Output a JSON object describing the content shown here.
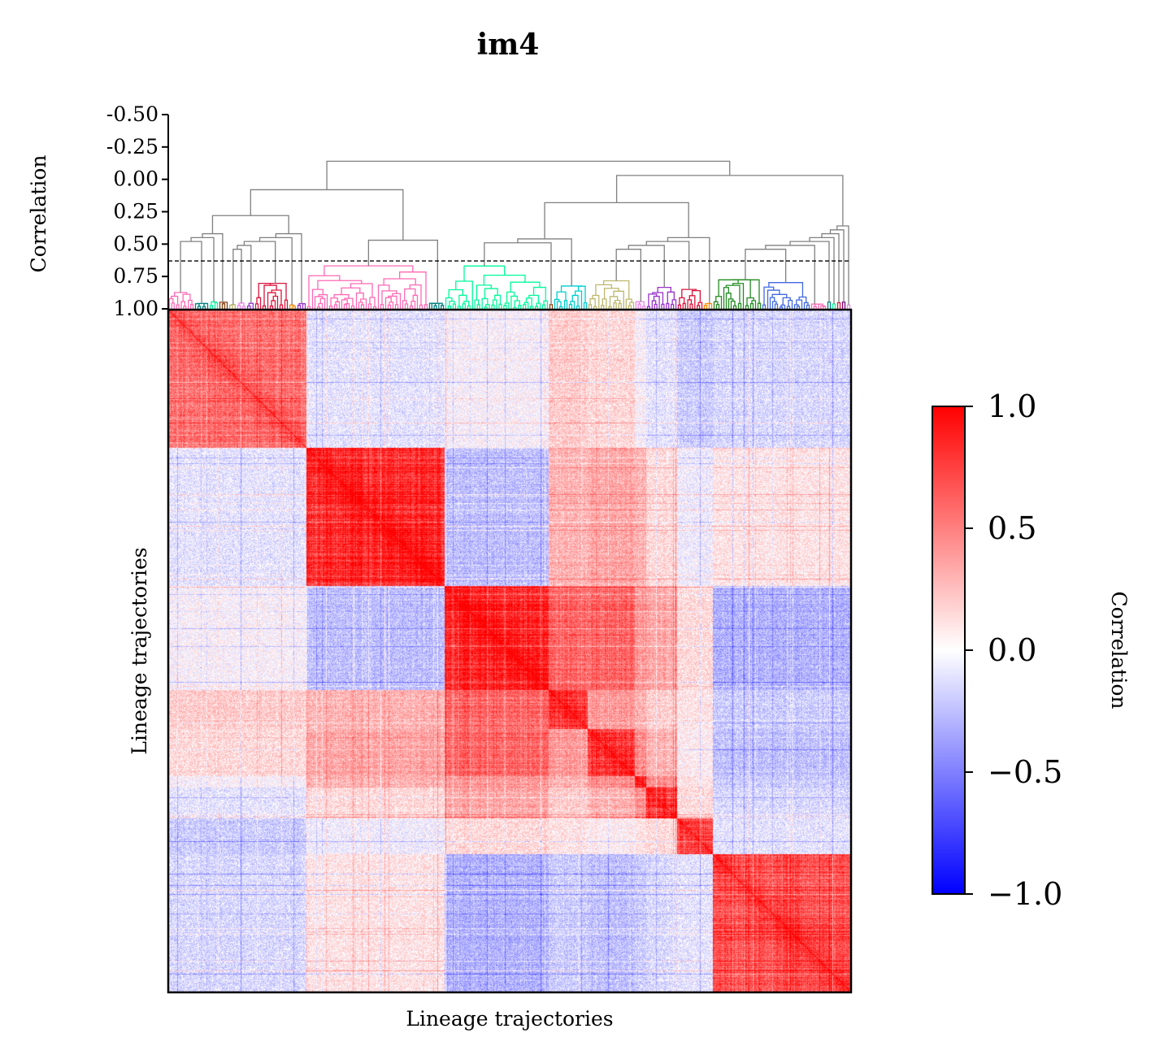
{
  "chart_data": [
    {
      "type": "dendrogram",
      "title": "im4",
      "ylabel": "Correlation",
      "y_tick_labels": [
        "-0.50",
        "-0.25",
        "0.00",
        "0.25",
        "0.50",
        "0.75",
        "1.00"
      ],
      "y_ticks": [
        -0.5,
        -0.25,
        0.0,
        0.25,
        0.5,
        0.75,
        1.0
      ],
      "ylim": [
        -0.5,
        1.0
      ],
      "y_inverted": true,
      "cutoff_line": 0.63,
      "link_color": "#808080",
      "leaf_count": 840,
      "clusters": [
        {
          "start": 0,
          "end": 32,
          "color": "#ff69b4"
        },
        {
          "start": 32,
          "end": 50,
          "color": "#008080"
        },
        {
          "start": 50,
          "end": 62,
          "color": "#00fa9a"
        },
        {
          "start": 62,
          "end": 74,
          "color": "#8b4513"
        },
        {
          "start": 74,
          "end": 84,
          "color": "#bdb76b"
        },
        {
          "start": 84,
          "end": 96,
          "color": "#ee82ee"
        },
        {
          "start": 96,
          "end": 106,
          "color": "#9932cc"
        },
        {
          "start": 106,
          "end": 148,
          "color": "#dc143c"
        },
        {
          "start": 148,
          "end": 158,
          "color": "#ff8c00"
        },
        {
          "start": 158,
          "end": 170,
          "color": "#9932cc"
        },
        {
          "start": 170,
          "end": 320,
          "color": "#ff69b4"
        },
        {
          "start": 320,
          "end": 340,
          "color": "#008080"
        },
        {
          "start": 340,
          "end": 468,
          "color": "#00fa9a"
        },
        {
          "start": 468,
          "end": 474,
          "color": "#8b4513"
        },
        {
          "start": 474,
          "end": 516,
          "color": "#00ced1"
        },
        {
          "start": 516,
          "end": 574,
          "color": "#bdb76b"
        },
        {
          "start": 574,
          "end": 588,
          "color": "#ee82ee"
        },
        {
          "start": 588,
          "end": 626,
          "color": "#9932cc"
        },
        {
          "start": 626,
          "end": 658,
          "color": "#dc143c"
        },
        {
          "start": 658,
          "end": 670,
          "color": "#ff8c00"
        },
        {
          "start": 670,
          "end": 730,
          "color": "#228b22"
        },
        {
          "start": 730,
          "end": 790,
          "color": "#4169e1"
        },
        {
          "start": 790,
          "end": 810,
          "color": "#ff69b4"
        },
        {
          "start": 810,
          "end": 816,
          "color": "#008080"
        },
        {
          "start": 816,
          "end": 822,
          "color": "#00fa9a"
        },
        {
          "start": 822,
          "end": 828,
          "color": "#dc143c"
        },
        {
          "start": 828,
          "end": 834,
          "color": "#800080"
        },
        {
          "start": 834,
          "end": 840,
          "color": "#ee82ee"
        }
      ]
    },
    {
      "type": "heatmap",
      "xlabel": "Lineage trajectories",
      "ylabel": "Lineage trajectories",
      "n_rows": 840,
      "n_cols": 840,
      "value_range": [
        -1.0,
        1.0
      ],
      "colormap": [
        "#0000ff",
        "#ffffff",
        "#ff0000"
      ],
      "block_boundaries": [
        0,
        170,
        340,
        468,
        516,
        574,
        588,
        626,
        670,
        840
      ],
      "block_correlation_matrix": [
        [
          0.55,
          -0.1,
          0.0,
          0.2,
          0.15,
          0.0,
          -0.1,
          -0.2,
          -0.15
        ],
        [
          -0.1,
          0.85,
          -0.25,
          0.3,
          0.35,
          0.3,
          0.15,
          -0.05,
          0.1
        ],
        [
          0.0,
          -0.25,
          0.85,
          0.6,
          0.6,
          0.4,
          0.35,
          0.15,
          -0.3
        ],
        [
          0.2,
          0.3,
          0.6,
          0.75,
          0.4,
          0.3,
          0.2,
          0.1,
          -0.2
        ],
        [
          0.15,
          0.35,
          0.6,
          0.4,
          0.75,
          0.45,
          0.3,
          0.05,
          -0.25
        ],
        [
          0.0,
          0.3,
          0.4,
          0.3,
          0.45,
          0.75,
          0.45,
          0.1,
          -0.2
        ],
        [
          -0.1,
          0.15,
          0.35,
          0.2,
          0.3,
          0.45,
          0.75,
          0.15,
          -0.15
        ],
        [
          -0.2,
          -0.05,
          0.15,
          0.1,
          0.05,
          0.1,
          0.15,
          0.7,
          -0.1
        ],
        [
          -0.15,
          0.1,
          -0.3,
          -0.2,
          -0.25,
          -0.2,
          -0.15,
          -0.1,
          0.7
        ]
      ]
    },
    {
      "type": "colorbar",
      "label": "Correlation",
      "tick_labels": [
        "1.0",
        "0.5",
        "0.0",
        "−0.5",
        "−1.0"
      ],
      "ticks": [
        1.0,
        0.5,
        0.0,
        -0.5,
        -1.0
      ],
      "range": [
        -1.0,
        1.0
      ],
      "colors": [
        "#0000ff",
        "#ffffff",
        "#ff0000"
      ]
    }
  ]
}
